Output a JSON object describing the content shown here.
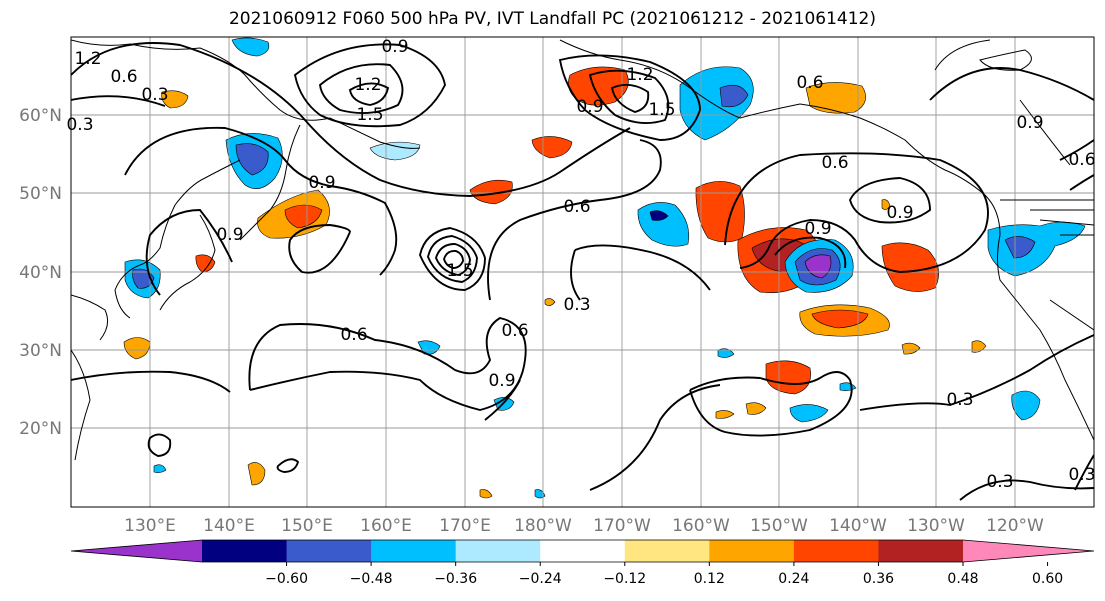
{
  "title": "2021060912 F060 500 hPa PV, IVT Landfall PC (2021061212 - 2021061412)",
  "lat_labels": [
    "60°N",
    "50°N",
    "40°N",
    "30°N",
    "20°N"
  ],
  "lon_labels": [
    "130°E",
    "140°E",
    "150°E",
    "160°E",
    "170°E",
    "180°W",
    "170°W",
    "160°W",
    "150°W",
    "140°W",
    "130°W",
    "120°W"
  ],
  "contour_labels": [
    "1.2",
    "0.6",
    "0.3",
    "0.9",
    "1.2",
    "1.5",
    "0.9",
    "1.2",
    "1.5",
    "0.6",
    "0.9",
    "0.9",
    "0.6",
    "0.6",
    "0.9",
    "0.3",
    "0.6",
    "0.9",
    "0.3",
    "0.3",
    "0.9",
    "1.5",
    "0.3",
    "0.3",
    "0.9",
    "0.6",
    "0.6"
  ],
  "colorbar": {
    "colors": [
      "#9933cc",
      "#000080",
      "#3a5bcc",
      "#00bfff",
      "#aeeaff",
      "#ffffff",
      "#ffe680",
      "#ffa500",
      "#ff4500",
      "#b22222",
      "#ff88bb"
    ],
    "ticks": [
      "−0.60",
      "−0.48",
      "−0.36",
      "−0.24",
      "−0.12",
      "0.12",
      "0.24",
      "0.36",
      "0.48",
      "0.60"
    ]
  }
}
